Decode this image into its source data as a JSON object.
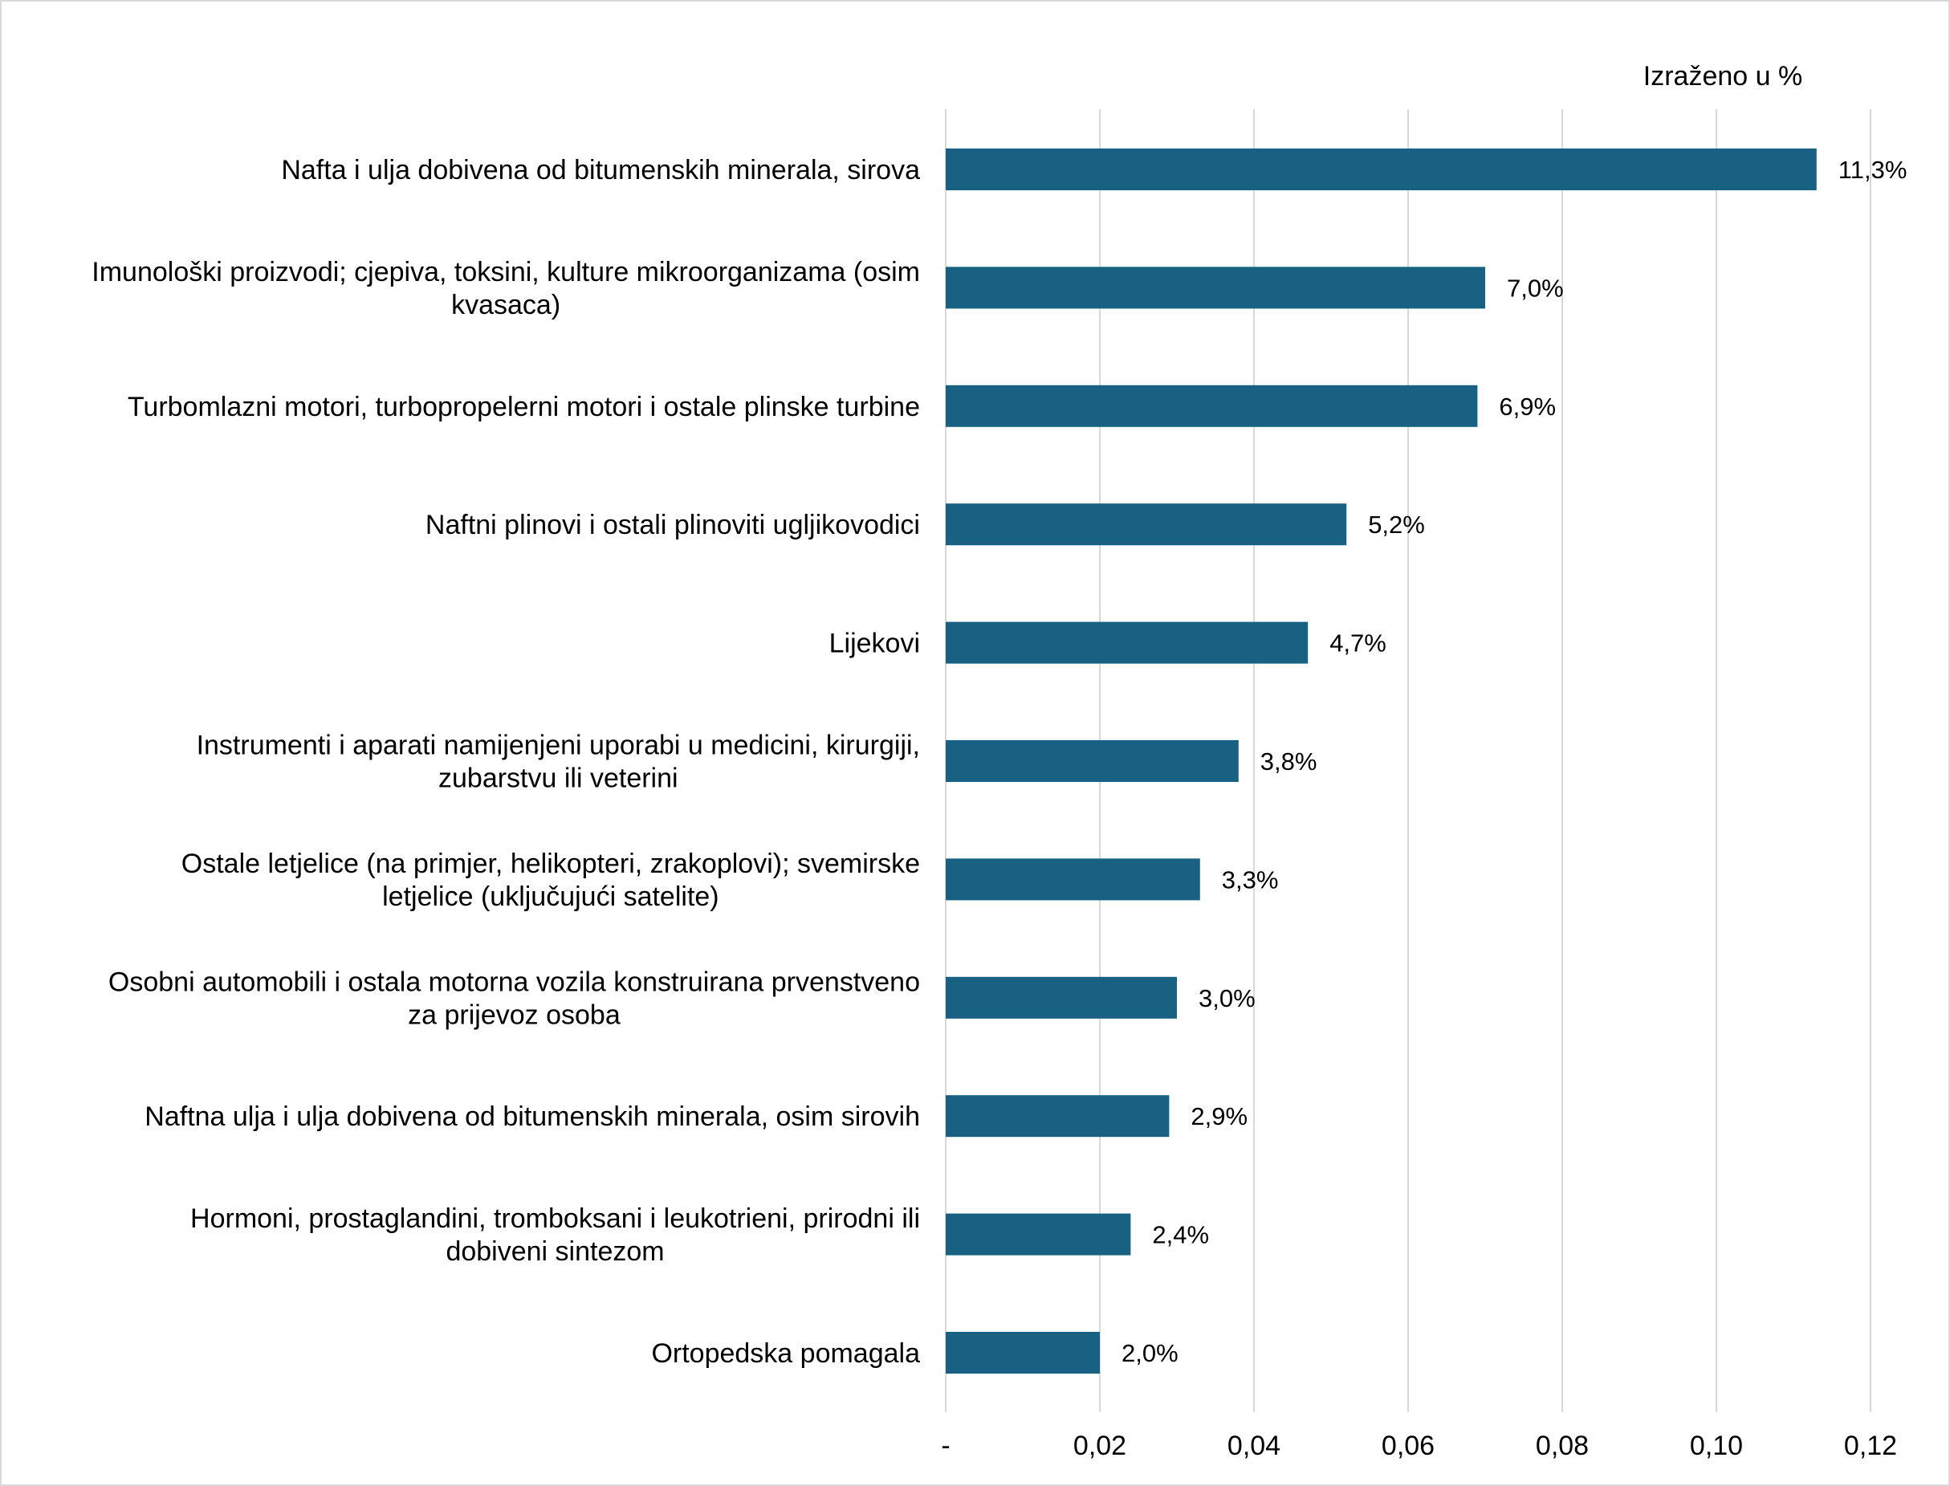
{
  "chart_data": {
    "type": "bar",
    "orientation": "horizontal",
    "unit_note": "Izraženo u %",
    "categories": [
      "Nafta i ulja dobivena od bitumenskih minerala, sirova",
      "Imunološki proizvodi; cjepiva, toksini, kulture mikroorganizama (osim kvasaca)",
      "Turbomlazni motori, turbopropelerni motori i ostale plinske turbine",
      "Naftni plinovi i ostali plinoviti ugljikovodici",
      "Lijekovi",
      "Instrumenti i aparati namijenjeni uporabi u medicini, kirurgiji, zubarstvu ili veterini",
      "Ostale letjelice (na primjer, helikopteri, zrakoplovi); svemirske letjelice (uključujući satelite)",
      "Osobni automobili i ostala motorna vozila konstruirana prvenstveno za prijevoz osoba",
      "Naftna ulja i ulja dobivena od bitumenskih minerala, osim sirovih",
      "Hormoni, prostaglandini, tromboksani i leukotrieni, prirodni ili dobiveni sintezom",
      "Ortopedska pomagala"
    ],
    "category_lines": [
      [
        "Nafta i ulja dobivena od bitumenskih minerala, sirova"
      ],
      [
        "Imunološki proizvodi; cjepiva, toksini, kulture mikroorganizama (osim",
        "kvasaca)"
      ],
      [
        "Turbomlazni motori, turbopropelerni motori i ostale plinske turbine"
      ],
      [
        "Naftni plinovi i ostali plinoviti ugljikovodici"
      ],
      [
        "Lijekovi"
      ],
      [
        "Instrumenti i aparati namijenjeni uporabi u medicini, kirurgiji,",
        "zubarstvu ili veterini"
      ],
      [
        "Ostale letjelice (na primjer, helikopteri, zrakoplovi); svemirske",
        "letjelice (uključujući satelite)"
      ],
      [
        "Osobni automobili i ostala motorna vozila konstruirana prvenstveno",
        "za prijevoz osoba"
      ],
      [
        "Naftna ulja i ulja dobivena od bitumenskih minerala, osim sirovih"
      ],
      [
        "Hormoni, prostaglandini, tromboksani i leukotrieni, prirodni ili",
        "dobiveni sintezom"
      ],
      [
        "Ortopedska pomagala"
      ]
    ],
    "values": [
      0.113,
      0.07,
      0.069,
      0.052,
      0.047,
      0.038,
      0.033,
      0.03,
      0.029,
      0.024,
      0.02
    ],
    "data_labels": [
      "11,3%",
      "7,0%",
      "6,9%",
      "5,2%",
      "4,7%",
      "3,8%",
      "3,3%",
      "3,0%",
      "2,9%",
      "2,4%",
      "2,0%"
    ],
    "xlim": [
      0,
      0.12
    ],
    "x_ticks": [
      0,
      0.02,
      0.04,
      0.06,
      0.08,
      0.1,
      0.12
    ],
    "x_tick_labels": [
      "-",
      "0,02",
      "0,04",
      "0,06",
      "0,08",
      "0,10",
      "0,12"
    ],
    "grid": "vertical",
    "bar_color": "#186183",
    "grid_color": "#d9d9d9"
  }
}
